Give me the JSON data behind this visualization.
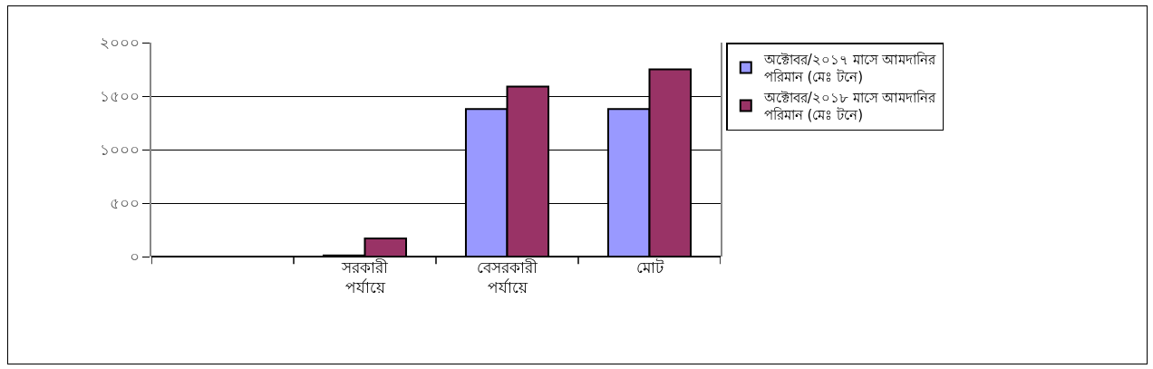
{
  "chart_data": {
    "type": "bar",
    "categories": [
      null,
      "সরকারী পর্যায়ে",
      "বেসরকারী পর্যায়ে",
      "মোট"
    ],
    "series": [
      {
        "name": "অক্টোবর/২০১৭ মাসে আমদানির পরিমান (মেঃ টনে)",
        "color": "#9999ff",
        "values": [
          null,
          10,
          1380,
          1380
        ]
      },
      {
        "name": "অক্টোবর/২০১৮ মাসে আমদানির পরিমান (মেঃ টনে)",
        "color": "#993366",
        "values": [
          null,
          170,
          1590,
          1750
        ]
      }
    ],
    "ylim": [
      0,
      2000
    ],
    "yticks": [
      {
        "value": 0,
        "label": "০"
      },
      {
        "value": 500,
        "label": "৫০০"
      },
      {
        "value": 1000,
        "label": "১০০০"
      },
      {
        "value": 1500,
        "label": "১৫০০"
      },
      {
        "value": 2000,
        "label": "২০০০"
      }
    ],
    "grid": "y",
    "legend": "right"
  }
}
